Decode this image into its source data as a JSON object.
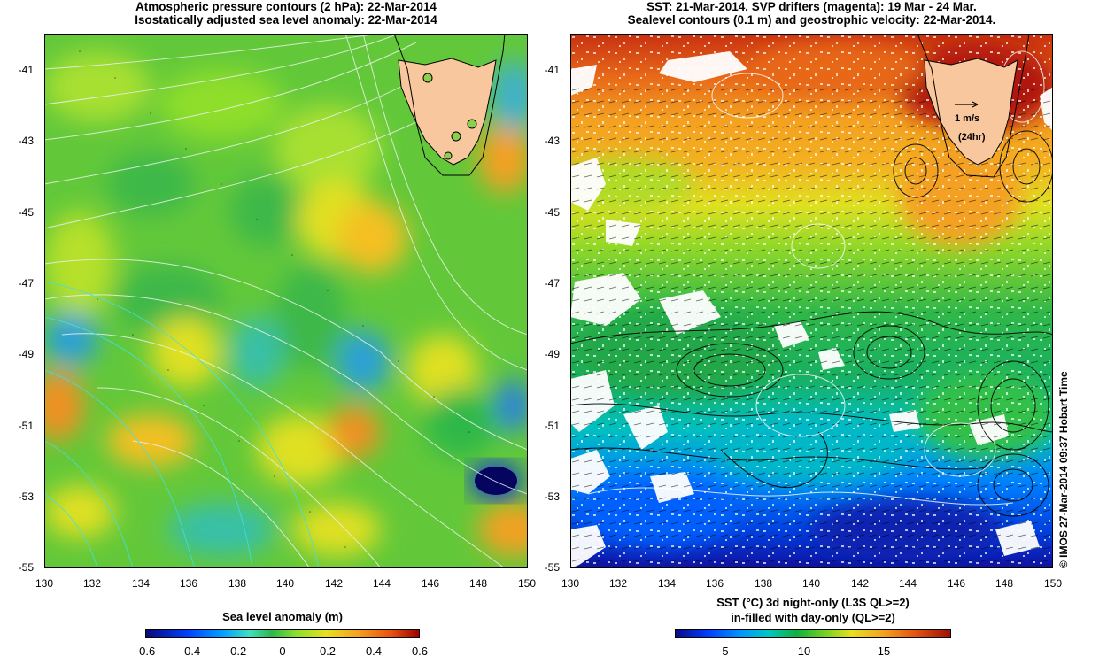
{
  "left_panel": {
    "title_line1": "Atmospheric pressure contours (2 hPa): 22-Mar-2014",
    "title_line2": "Isostatically adjusted sea level anomaly: 22-Mar-2014",
    "colorbar_label": "Sea level anomaly (m)",
    "colorbar_ticks": [
      "-0.6",
      "-0.4",
      "-0.2",
      "0",
      "0.2",
      "0.4",
      "0.6"
    ]
  },
  "right_panel": {
    "title_line1": "SST: 21-Mar-2014. SVP drifters (magenta): 19 Mar - 24 Mar.",
    "title_line2": "Sealevel contours (0.1 m) and geostrophic velocity: 22-Mar-2014.",
    "colorbar_label_line1": "SST (°C)  3d night-only (L3S QL>=2)",
    "colorbar_label_line2": "in-filled with day-only (QL>=2)",
    "colorbar_ticks": [
      "5",
      "10",
      "15"
    ],
    "scale_arrow_label": "1 m/s",
    "scale_arrow_sublabel": "(24hr)"
  },
  "lat_ticks": [
    "-41",
    "-43",
    "-45",
    "-47",
    "-49",
    "-51",
    "-53",
    "-55"
  ],
  "lon_ticks": [
    "130",
    "132",
    "134",
    "136",
    "138",
    "140",
    "142",
    "144",
    "146",
    "148",
    "150"
  ],
  "credit": "© IMOS 27-Mar-2014 09:37 Hobart Time",
  "colors": {
    "land": "#f9c79d",
    "sla_scale": [
      "#0a0a7a",
      "#0040ff",
      "#00a0ff",
      "#40e0c0",
      "#2db84a",
      "#8ae02a",
      "#e8e020",
      "#f4a020",
      "#e85010",
      "#a00000"
    ],
    "sst_scale": [
      "#0a0a8a",
      "#0040ff",
      "#0098ff",
      "#00c8c0",
      "#10b040",
      "#70d020",
      "#e8e020",
      "#f4a020",
      "#e05010",
      "#a01008"
    ]
  }
}
